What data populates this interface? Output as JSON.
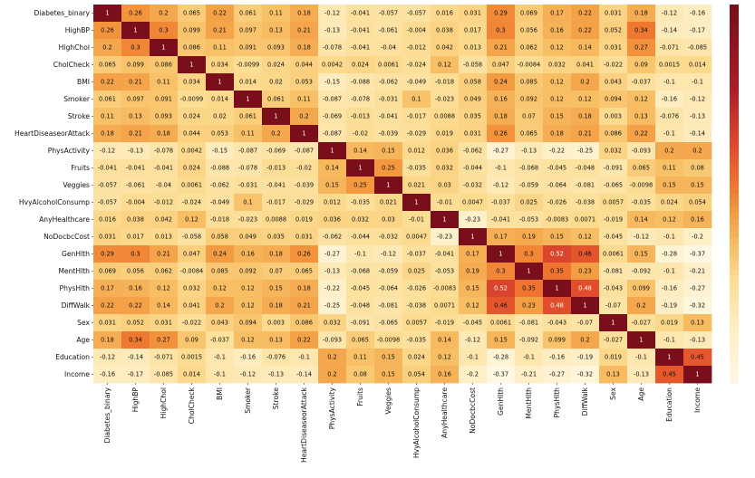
{
  "chart_data": {
    "type": "heatmap",
    "title": "",
    "labels": [
      "Diabetes_binary",
      "HighBP",
      "HighChol",
      "CholCheck",
      "BMI",
      "Smoker",
      "Stroke",
      "HeartDiseaseorAttack",
      "PhysActivity",
      "Fruits",
      "Veggies",
      "HvyAlcoholConsump",
      "AnyHealthcare",
      "NoDocbcCost",
      "GenHlth",
      "MentHlth",
      "PhysHlth",
      "DiffWalk",
      "Sex",
      "Age",
      "Education",
      "Income"
    ],
    "values": [
      [
        1,
        0.26,
        0.2,
        0.065,
        0.22,
        0.061,
        0.11,
        0.18,
        -0.12,
        -0.041,
        -0.057,
        -0.057,
        0.016,
        0.031,
        0.29,
        0.069,
        0.17,
        0.22,
        0.031,
        0.18,
        -0.12,
        -0.16
      ],
      [
        0.26,
        1,
        0.3,
        0.099,
        0.21,
        0.097,
        0.13,
        0.21,
        -0.13,
        -0.041,
        -0.061,
        -0.004,
        0.038,
        0.017,
        0.3,
        0.056,
        0.16,
        0.22,
        0.052,
        0.34,
        -0.14,
        -0.17
      ],
      [
        0.2,
        0.3,
        1,
        0.086,
        0.11,
        0.091,
        0.093,
        0.18,
        -0.078,
        -0.041,
        -0.04,
        -0.012,
        0.042,
        0.013,
        0.21,
        0.062,
        0.12,
        0.14,
        0.031,
        0.27,
        -0.071,
        -0.085
      ],
      [
        0.065,
        0.099,
        0.086,
        1,
        0.034,
        -0.0099,
        0.024,
        0.044,
        0.0042,
        0.024,
        0.0061,
        -0.024,
        0.12,
        -0.058,
        0.047,
        -0.0084,
        0.032,
        0.041,
        -0.022,
        0.09,
        0.0015,
        0.014
      ],
      [
        0.22,
        0.21,
        0.11,
        0.034,
        1,
        0.014,
        0.02,
        0.053,
        -0.15,
        -0.088,
        -0.062,
        -0.049,
        -0.018,
        0.058,
        0.24,
        0.085,
        0.12,
        0.2,
        0.043,
        -0.037,
        -0.1,
        -0.1
      ],
      [
        0.061,
        0.097,
        0.091,
        -0.0099,
        0.014,
        1,
        0.061,
        0.11,
        -0.087,
        -0.078,
        -0.031,
        0.1,
        -0.023,
        0.049,
        0.16,
        0.092,
        0.12,
        0.12,
        0.094,
        0.12,
        -0.16,
        -0.12
      ],
      [
        0.11,
        0.13,
        0.093,
        0.024,
        0.02,
        0.061,
        1,
        0.2,
        -0.069,
        -0.013,
        -0.041,
        -0.017,
        0.0088,
        0.035,
        0.18,
        0.07,
        0.15,
        0.18,
        0.003,
        0.13,
        -0.076,
        -0.13
      ],
      [
        0.18,
        0.21,
        0.18,
        0.044,
        0.053,
        0.11,
        0.2,
        1,
        -0.087,
        -0.02,
        -0.039,
        -0.029,
        0.019,
        0.031,
        0.26,
        0.065,
        0.18,
        0.21,
        0.086,
        0.22,
        -0.1,
        -0.14
      ],
      [
        -0.12,
        -0.13,
        -0.078,
        0.0042,
        -0.15,
        -0.087,
        -0.069,
        -0.087,
        1,
        0.14,
        0.15,
        0.012,
        0.036,
        -0.062,
        -0.27,
        -0.13,
        -0.22,
        -0.25,
        0.032,
        -0.093,
        0.2,
        0.2
      ],
      [
        -0.041,
        -0.041,
        -0.041,
        0.024,
        -0.088,
        -0.078,
        -0.013,
        -0.02,
        0.14,
        1,
        0.25,
        -0.035,
        0.032,
        -0.044,
        -0.1,
        -0.068,
        -0.045,
        -0.048,
        -0.091,
        0.065,
        0.11,
        0.08
      ],
      [
        -0.057,
        -0.061,
        -0.04,
        0.0061,
        -0.062,
        -0.031,
        -0.041,
        -0.039,
        0.15,
        0.25,
        1,
        0.021,
        0.03,
        -0.032,
        -0.12,
        -0.059,
        -0.064,
        -0.081,
        -0.065,
        -0.0098,
        0.15,
        0.15
      ],
      [
        -0.057,
        -0.004,
        -0.012,
        -0.024,
        -0.049,
        0.1,
        -0.017,
        -0.029,
        0.012,
        -0.035,
        0.021,
        1,
        -0.01,
        0.0047,
        -0.037,
        0.025,
        -0.026,
        -0.038,
        0.0057,
        -0.035,
        0.024,
        0.054
      ],
      [
        0.016,
        0.038,
        0.042,
        0.12,
        -0.018,
        -0.023,
        0.0088,
        0.019,
        0.036,
        0.032,
        0.03,
        -0.01,
        1,
        -0.23,
        -0.041,
        -0.053,
        -0.0083,
        0.0071,
        -0.019,
        0.14,
        0.12,
        0.16
      ],
      [
        0.031,
        0.017,
        0.013,
        -0.058,
        0.058,
        0.049,
        0.035,
        0.031,
        -0.062,
        -0.044,
        -0.032,
        0.0047,
        -0.23,
        1,
        0.17,
        0.19,
        0.15,
        0.12,
        -0.045,
        -0.12,
        -0.1,
        -0.2
      ],
      [
        0.29,
        0.3,
        0.21,
        0.047,
        0.24,
        0.16,
        0.18,
        0.26,
        -0.27,
        -0.1,
        -0.12,
        -0.037,
        -0.041,
        0.17,
        1,
        0.3,
        0.52,
        0.46,
        0.0061,
        0.15,
        -0.28,
        -0.37
      ],
      [
        0.069,
        0.056,
        0.062,
        -0.0084,
        0.085,
        0.092,
        0.07,
        0.065,
        -0.13,
        -0.068,
        -0.059,
        0.025,
        -0.053,
        0.19,
        0.3,
        1,
        0.35,
        0.23,
        -0.081,
        -0.092,
        -0.1,
        -0.21
      ],
      [
        0.17,
        0.16,
        0.12,
        0.032,
        0.12,
        0.12,
        0.15,
        0.18,
        -0.22,
        -0.045,
        -0.064,
        -0.026,
        -0.0083,
        0.15,
        0.52,
        0.35,
        1,
        0.48,
        -0.043,
        0.099,
        -0.16,
        -0.27
      ],
      [
        0.22,
        0.22,
        0.14,
        0.041,
        0.2,
        0.12,
        0.18,
        0.21,
        -0.25,
        -0.048,
        -0.081,
        -0.038,
        0.0071,
        0.12,
        0.46,
        0.23,
        0.48,
        1,
        -0.07,
        0.2,
        -0.19,
        -0.32
      ],
      [
        0.031,
        0.052,
        0.031,
        -0.022,
        0.043,
        0.094,
        0.003,
        0.086,
        0.032,
        -0.091,
        -0.065,
        0.0057,
        -0.019,
        -0.045,
        0.0061,
        -0.081,
        -0.043,
        -0.07,
        1,
        -0.027,
        0.019,
        0.13
      ],
      [
        0.18,
        0.34,
        0.27,
        0.09,
        -0.037,
        0.12,
        0.13,
        0.22,
        -0.093,
        0.065,
        -0.0098,
        -0.035,
        0.14,
        -0.12,
        0.15,
        -0.092,
        0.099,
        0.2,
        -0.027,
        1,
        -0.1,
        -0.13
      ],
      [
        -0.12,
        -0.14,
        -0.071,
        0.0015,
        -0.1,
        -0.16,
        -0.076,
        -0.1,
        0.2,
        0.11,
        0.15,
        0.024,
        0.12,
        -0.1,
        -0.28,
        -0.1,
        -0.16,
        -0.19,
        0.019,
        -0.1,
        1,
        0.45
      ],
      [
        -0.16,
        -0.17,
        -0.085,
        0.014,
        -0.1,
        -0.12,
        -0.13,
        -0.14,
        0.2,
        0.08,
        0.15,
        0.054,
        0.16,
        -0.2,
        -0.37,
        -0.21,
        -0.27,
        -0.32,
        0.13,
        -0.13,
        0.45,
        1
      ]
    ],
    "value_range": [
      -0.37,
      1.0
    ],
    "colorbar": {
      "ticks": [],
      "placement": "right"
    },
    "colormap": {
      "stops": [
        "#000000",
        "#300b44",
        "#6c1b63",
        "#a52c60",
        "#db4745",
        "#f57a3b",
        "#fbb16b",
        "#fcdeb0",
        "#fffdf8"
      ]
    }
  }
}
